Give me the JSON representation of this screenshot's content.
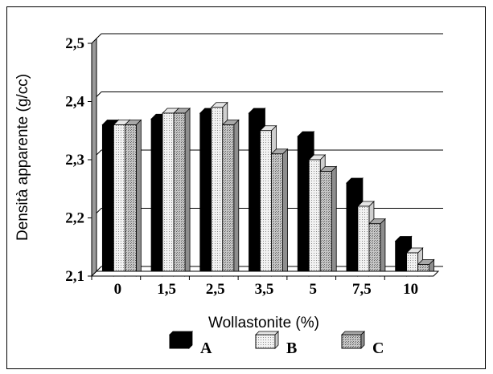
{
  "chart_data": {
    "type": "bar",
    "title": "",
    "xlabel": "Wollastonite (%)",
    "ylabel": "Densità apparente (g/cc)",
    "categories": [
      "0",
      "1,5",
      "2,5",
      "3,5",
      "5",
      "7,5",
      "10"
    ],
    "series": [
      {
        "name": "A",
        "values": [
          2.36,
          2.37,
          2.38,
          2.38,
          2.34,
          2.26,
          2.16
        ],
        "color": "#000000"
      },
      {
        "name": "B",
        "values": [
          2.36,
          2.38,
          2.39,
          2.35,
          2.3,
          2.22,
          2.14
        ],
        "color": "#e4e4e4"
      },
      {
        "name": "C",
        "values": [
          2.36,
          2.38,
          2.36,
          2.31,
          2.28,
          2.19,
          2.12
        ],
        "color": "#bcbcbc"
      }
    ],
    "ylim": [
      2.1,
      2.5
    ],
    "yticks": [
      "2,1",
      "2,2",
      "2,3",
      "2,4",
      "2,5"
    ],
    "ytick_values": [
      2.1,
      2.2,
      2.3,
      2.4,
      2.5
    ],
    "grid": true,
    "legend_position": "bottom",
    "style": "3d-clustered-bar"
  }
}
